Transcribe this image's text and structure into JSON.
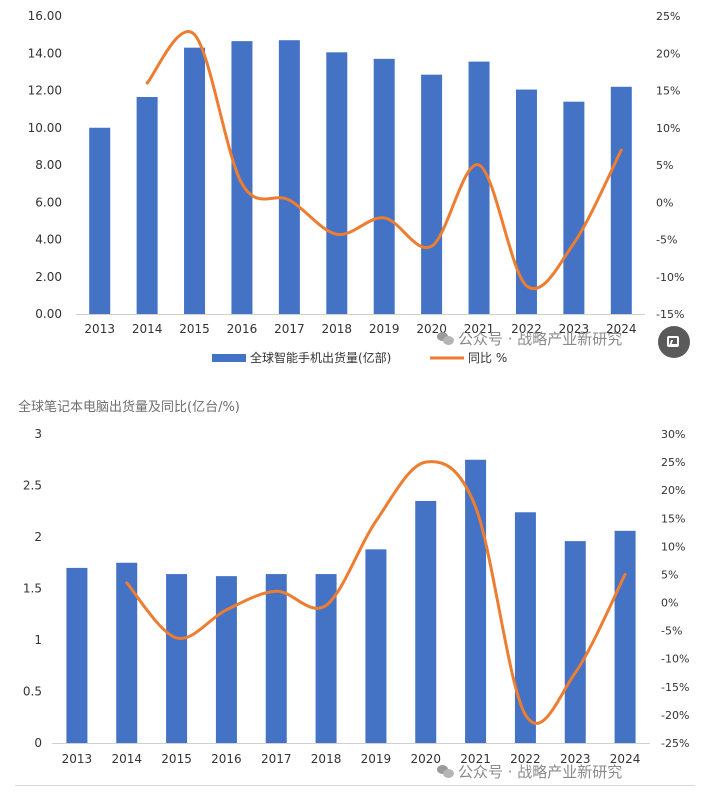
{
  "chart_data": [
    {
      "type": "bar",
      "title": "",
      "categories": [
        "2013",
        "2014",
        "2015",
        "2016",
        "2017",
        "2018",
        "2019",
        "2020",
        "2021",
        "2022",
        "2023",
        "2024"
      ],
      "series": [
        {
          "name": "全球智能手机出货量(亿部)",
          "type": "bar",
          "axis": "left",
          "values": [
            10.0,
            11.65,
            14.3,
            14.65,
            14.7,
            14.05,
            13.7,
            12.85,
            13.55,
            12.05,
            11.4,
            12.2
          ]
        },
        {
          "name": "同比 %",
          "type": "line",
          "axis": "right",
          "values": [
            null,
            16.0,
            22.5,
            2.5,
            0.3,
            -4.3,
            -2.1,
            -5.9,
            5.0,
            -11.2,
            -5.5,
            7.0
          ]
        }
      ],
      "yleft": {
        "min": 0,
        "max": 16,
        "ticks": [
          "0.00",
          "2.00",
          "4.00",
          "6.00",
          "8.00",
          "10.00",
          "12.00",
          "14.00",
          "16.00"
        ]
      },
      "yright": {
        "min": -15,
        "max": 25,
        "ticks": [
          "-15%",
          "-10%",
          "-5%",
          "0%",
          "5%",
          "10%",
          "15%",
          "20%",
          "25%"
        ]
      },
      "legend": "bottom",
      "grid": false,
      "colors": {
        "bar": "#4472c4",
        "line": "#ed7d31"
      }
    },
    {
      "type": "bar",
      "title": "全球笔记本电脑出货量及同比(亿台/%)",
      "categories": [
        "2013",
        "2014",
        "2015",
        "2016",
        "2017",
        "2018",
        "2019",
        "2020",
        "2021",
        "2022",
        "2023",
        "2024"
      ],
      "series": [
        {
          "type": "bar",
          "axis": "left",
          "values": [
            1.7,
            1.75,
            1.64,
            1.62,
            1.64,
            1.64,
            1.88,
            2.35,
            2.75,
            2.24,
            1.96,
            2.06
          ]
        },
        {
          "type": "line",
          "axis": "right",
          "values": [
            null,
            3.5,
            -6.3,
            -1.3,
            2.0,
            -0.5,
            14.5,
            25.0,
            17.0,
            -20.0,
            -12.5,
            5.0
          ]
        }
      ],
      "yleft": {
        "min": 0,
        "max": 3,
        "ticks": [
          "0",
          "0.5",
          "1",
          "1.5",
          "2",
          "2.5",
          "3"
        ]
      },
      "yright": {
        "min": -25,
        "max": 30,
        "ticks": [
          "-25%",
          "-20%",
          "-15%",
          "-10%",
          "-5%",
          "0%",
          "5%",
          "10%",
          "15%",
          "20%",
          "25%",
          "30%"
        ]
      },
      "legend": "none",
      "grid": false,
      "colors": {
        "bar": "#4472c4",
        "line": "#ed7d31"
      }
    }
  ],
  "watermark": {
    "text": "公众号 · 战略产业新研究",
    "icon": "wechat-icon"
  },
  "corner_button": {
    "icon": "image-edit-icon"
  }
}
